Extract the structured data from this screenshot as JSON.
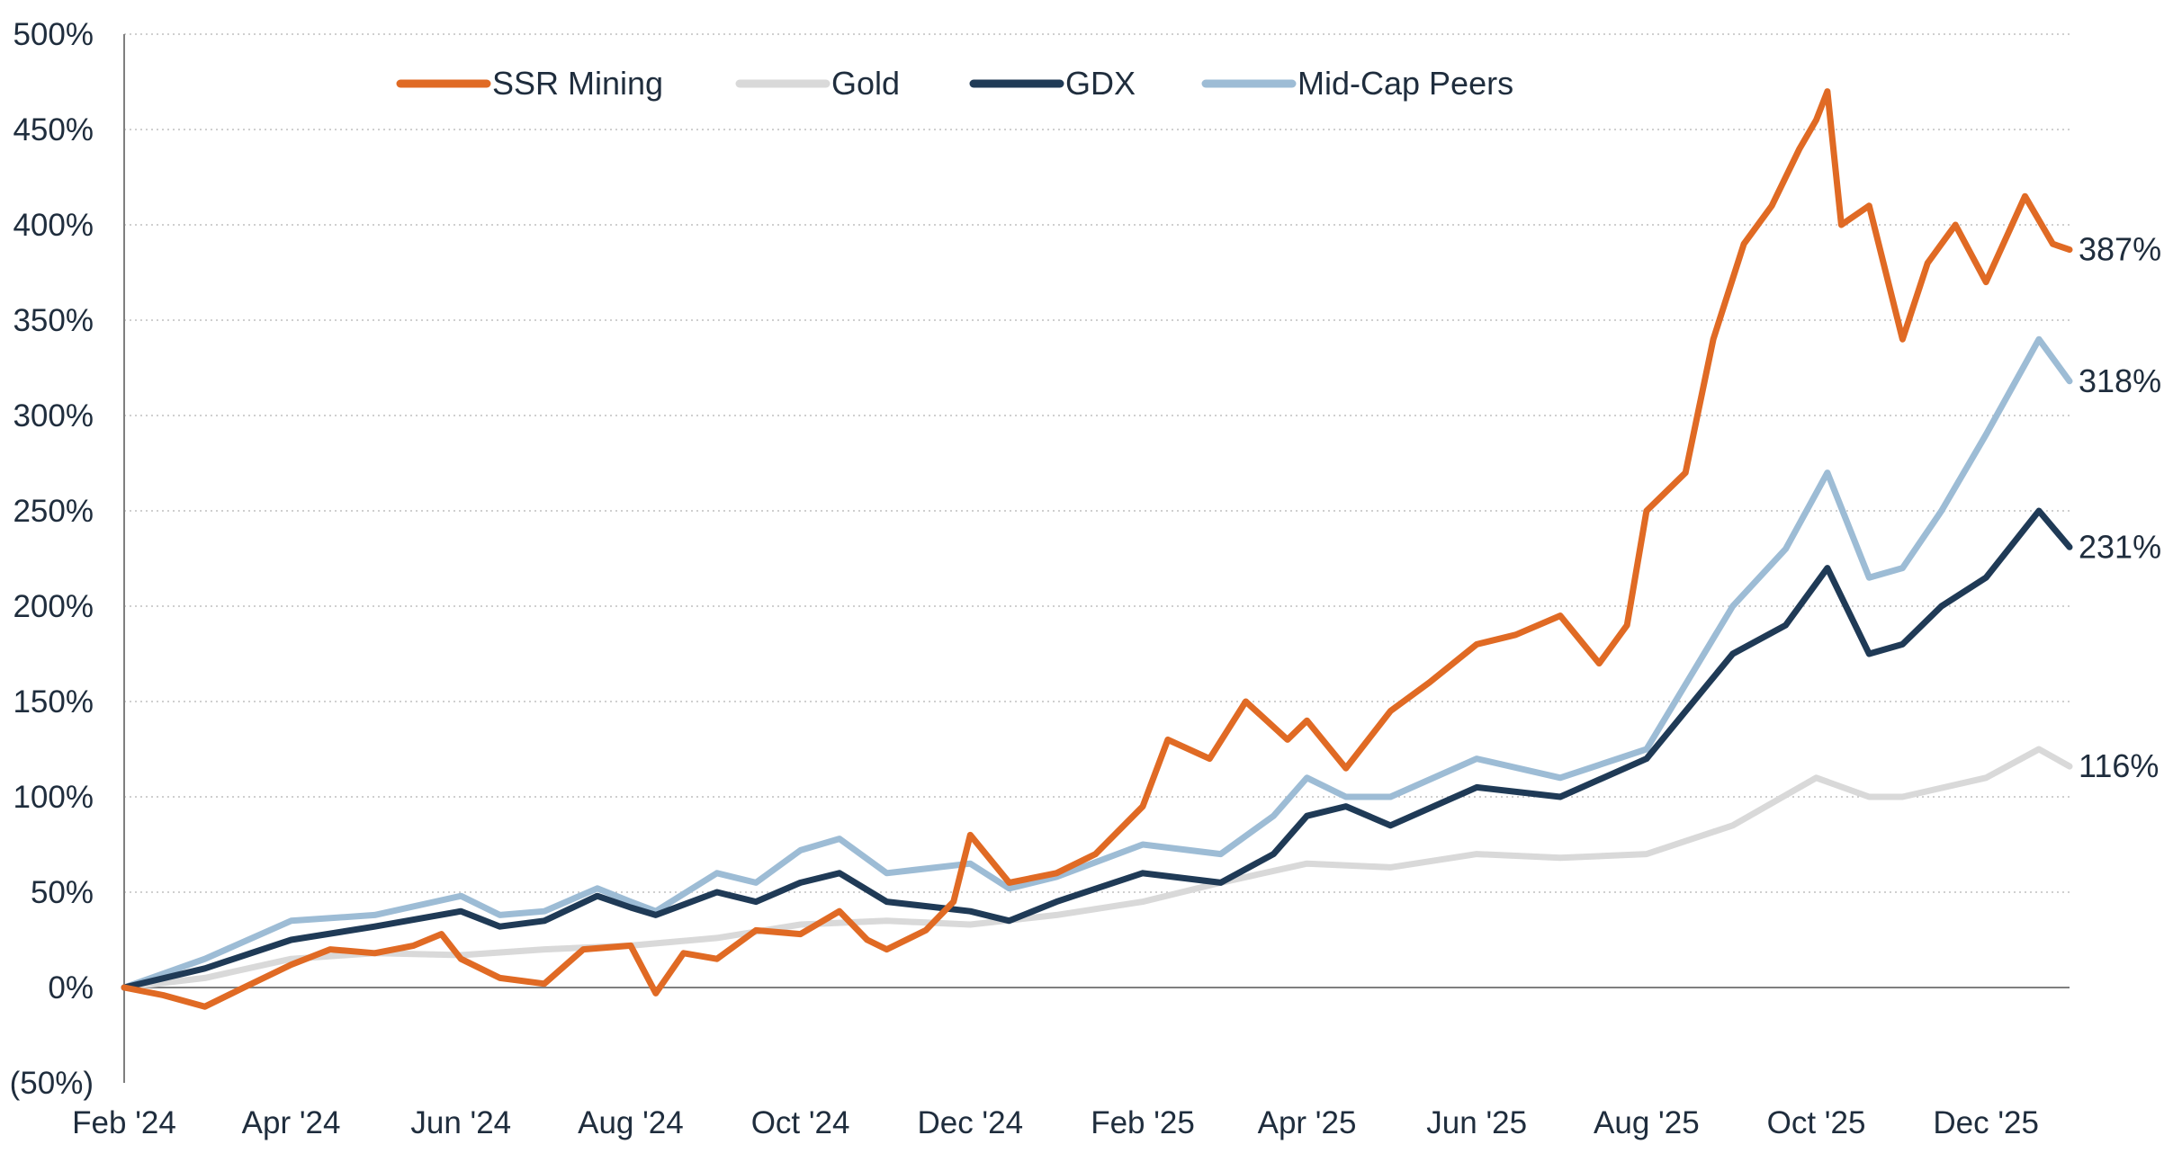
{
  "chart_data": {
    "type": "line",
    "title": "",
    "xlabel": "",
    "ylabel": "",
    "x_range": [
      "2024-02-01",
      "2025-12-31"
    ],
    "ylim": [
      -50,
      500
    ],
    "y_ticks": [
      500,
      450,
      400,
      350,
      300,
      250,
      200,
      150,
      100,
      50,
      0,
      -50
    ],
    "y_tick_labels": [
      "500%",
      "450%",
      "400%",
      "350%",
      "300%",
      "250%",
      "200%",
      "150%",
      "100%",
      "50%",
      "0%",
      "(50%)"
    ],
    "x_ticks": [
      "2024-02-01",
      "2024-04-01",
      "2024-06-01",
      "2024-08-01",
      "2024-10-01",
      "2024-12-01",
      "2025-02-01",
      "2025-04-01",
      "2025-06-01",
      "2025-08-01",
      "2025-10-01",
      "2025-12-01"
    ],
    "x_tick_labels": [
      "Feb '24",
      "Apr '24",
      "Jun '24",
      "Aug '24",
      "Oct '24",
      "Dec '24",
      "Feb '25",
      "Apr '25",
      "Jun '25",
      "Aug '25",
      "Oct '25",
      "Dec '25"
    ],
    "grid": {
      "horizontal": true,
      "vertical": false,
      "style": "dotted"
    },
    "legend_position": "top",
    "series": [
      {
        "name": "SSR Mining",
        "color": "#E06A24",
        "end_label": "387%",
        "points": [
          [
            "2024-02-01",
            0
          ],
          [
            "2024-02-15",
            -4
          ],
          [
            "2024-03-01",
            -10
          ],
          [
            "2024-03-15",
            0
          ],
          [
            "2024-04-01",
            12
          ],
          [
            "2024-04-15",
            20
          ],
          [
            "2024-05-01",
            18
          ],
          [
            "2024-05-15",
            22
          ],
          [
            "2024-05-25",
            28
          ],
          [
            "2024-06-01",
            15
          ],
          [
            "2024-06-15",
            5
          ],
          [
            "2024-07-01",
            2
          ],
          [
            "2024-07-15",
            20
          ],
          [
            "2024-08-01",
            22
          ],
          [
            "2024-08-10",
            -3
          ],
          [
            "2024-08-20",
            18
          ],
          [
            "2024-09-01",
            15
          ],
          [
            "2024-09-15",
            30
          ],
          [
            "2024-10-01",
            28
          ],
          [
            "2024-10-15",
            40
          ],
          [
            "2024-10-25",
            25
          ],
          [
            "2024-11-01",
            20
          ],
          [
            "2024-11-15",
            30
          ],
          [
            "2024-11-25",
            45
          ],
          [
            "2024-12-01",
            80
          ],
          [
            "2024-12-15",
            55
          ],
          [
            "2025-01-01",
            60
          ],
          [
            "2025-01-15",
            70
          ],
          [
            "2025-02-01",
            95
          ],
          [
            "2025-02-10",
            130
          ],
          [
            "2025-02-25",
            120
          ],
          [
            "2025-03-10",
            150
          ],
          [
            "2025-03-25",
            130
          ],
          [
            "2025-04-01",
            140
          ],
          [
            "2025-04-15",
            115
          ],
          [
            "2025-05-01",
            145
          ],
          [
            "2025-05-15",
            160
          ],
          [
            "2025-06-01",
            180
          ],
          [
            "2025-06-15",
            185
          ],
          [
            "2025-07-01",
            195
          ],
          [
            "2025-07-15",
            170
          ],
          [
            "2025-07-25",
            190
          ],
          [
            "2025-08-01",
            250
          ],
          [
            "2025-08-15",
            270
          ],
          [
            "2025-08-25",
            340
          ],
          [
            "2025-09-05",
            390
          ],
          [
            "2025-09-15",
            410
          ],
          [
            "2025-09-25",
            440
          ],
          [
            "2025-10-01",
            455
          ],
          [
            "2025-10-05",
            470
          ],
          [
            "2025-10-10",
            400
          ],
          [
            "2025-10-20",
            410
          ],
          [
            "2025-11-01",
            340
          ],
          [
            "2025-11-10",
            380
          ],
          [
            "2025-11-20",
            400
          ],
          [
            "2025-12-01",
            370
          ],
          [
            "2025-12-15",
            415
          ],
          [
            "2025-12-25",
            390
          ],
          [
            "2025-12-31",
            387
          ]
        ]
      },
      {
        "name": "Gold",
        "color": "#D9D9D9",
        "end_label": "116%",
        "points": [
          [
            "2024-02-01",
            0
          ],
          [
            "2024-03-01",
            5
          ],
          [
            "2024-04-01",
            15
          ],
          [
            "2024-05-01",
            18
          ],
          [
            "2024-06-01",
            17
          ],
          [
            "2024-07-01",
            20
          ],
          [
            "2024-08-01",
            22
          ],
          [
            "2024-09-01",
            26
          ],
          [
            "2024-10-01",
            33
          ],
          [
            "2024-11-01",
            35
          ],
          [
            "2024-12-01",
            33
          ],
          [
            "2025-01-01",
            38
          ],
          [
            "2025-02-01",
            45
          ],
          [
            "2025-03-01",
            55
          ],
          [
            "2025-04-01",
            65
          ],
          [
            "2025-05-01",
            63
          ],
          [
            "2025-06-01",
            70
          ],
          [
            "2025-07-01",
            68
          ],
          [
            "2025-08-01",
            70
          ],
          [
            "2025-09-01",
            85
          ],
          [
            "2025-10-01",
            110
          ],
          [
            "2025-10-20",
            100
          ],
          [
            "2025-11-01",
            100
          ],
          [
            "2025-12-01",
            110
          ],
          [
            "2025-12-20",
            125
          ],
          [
            "2025-12-31",
            116
          ]
        ]
      },
      {
        "name": "GDX",
        "color": "#1F3A56",
        "end_label": "231%",
        "points": [
          [
            "2024-02-01",
            0
          ],
          [
            "2024-03-01",
            10
          ],
          [
            "2024-04-01",
            25
          ],
          [
            "2024-05-01",
            32
          ],
          [
            "2024-06-01",
            40
          ],
          [
            "2024-06-15",
            32
          ],
          [
            "2024-07-01",
            35
          ],
          [
            "2024-07-20",
            48
          ],
          [
            "2024-08-01",
            42
          ],
          [
            "2024-08-10",
            38
          ],
          [
            "2024-09-01",
            50
          ],
          [
            "2024-09-15",
            45
          ],
          [
            "2024-10-01",
            55
          ],
          [
            "2024-10-15",
            60
          ],
          [
            "2024-11-01",
            45
          ],
          [
            "2024-12-01",
            40
          ],
          [
            "2024-12-15",
            35
          ],
          [
            "2025-01-01",
            45
          ],
          [
            "2025-02-01",
            60
          ],
          [
            "2025-03-01",
            55
          ],
          [
            "2025-03-20",
            70
          ],
          [
            "2025-04-01",
            90
          ],
          [
            "2025-04-15",
            95
          ],
          [
            "2025-05-01",
            85
          ],
          [
            "2025-06-01",
            105
          ],
          [
            "2025-07-01",
            100
          ],
          [
            "2025-08-01",
            120
          ],
          [
            "2025-09-01",
            175
          ],
          [
            "2025-09-20",
            190
          ],
          [
            "2025-10-05",
            220
          ],
          [
            "2025-10-20",
            175
          ],
          [
            "2025-11-01",
            180
          ],
          [
            "2025-11-15",
            200
          ],
          [
            "2025-12-01",
            215
          ],
          [
            "2025-12-20",
            250
          ],
          [
            "2025-12-31",
            231
          ]
        ]
      },
      {
        "name": "Mid-Cap Peers",
        "color": "#9DBCD5",
        "end_label": "318%",
        "points": [
          [
            "2024-02-01",
            0
          ],
          [
            "2024-03-01",
            15
          ],
          [
            "2024-04-01",
            35
          ],
          [
            "2024-05-01",
            38
          ],
          [
            "2024-06-01",
            48
          ],
          [
            "2024-06-15",
            38
          ],
          [
            "2024-07-01",
            40
          ],
          [
            "2024-07-20",
            52
          ],
          [
            "2024-08-01",
            45
          ],
          [
            "2024-08-10",
            40
          ],
          [
            "2024-09-01",
            60
          ],
          [
            "2024-09-15",
            55
          ],
          [
            "2024-10-01",
            72
          ],
          [
            "2024-10-15",
            78
          ],
          [
            "2024-11-01",
            60
          ],
          [
            "2024-12-01",
            65
          ],
          [
            "2024-12-15",
            52
          ],
          [
            "2025-01-01",
            58
          ],
          [
            "2025-02-01",
            75
          ],
          [
            "2025-03-01",
            70
          ],
          [
            "2025-03-20",
            90
          ],
          [
            "2025-04-01",
            110
          ],
          [
            "2025-04-15",
            100
          ],
          [
            "2025-05-01",
            100
          ],
          [
            "2025-06-01",
            120
          ],
          [
            "2025-07-01",
            110
          ],
          [
            "2025-08-01",
            125
          ],
          [
            "2025-09-01",
            200
          ],
          [
            "2025-09-20",
            230
          ],
          [
            "2025-10-05",
            270
          ],
          [
            "2025-10-20",
            215
          ],
          [
            "2025-11-01",
            220
          ],
          [
            "2025-11-15",
            250
          ],
          [
            "2025-12-01",
            290
          ],
          [
            "2025-12-20",
            340
          ],
          [
            "2025-12-31",
            318
          ]
        ]
      }
    ]
  }
}
